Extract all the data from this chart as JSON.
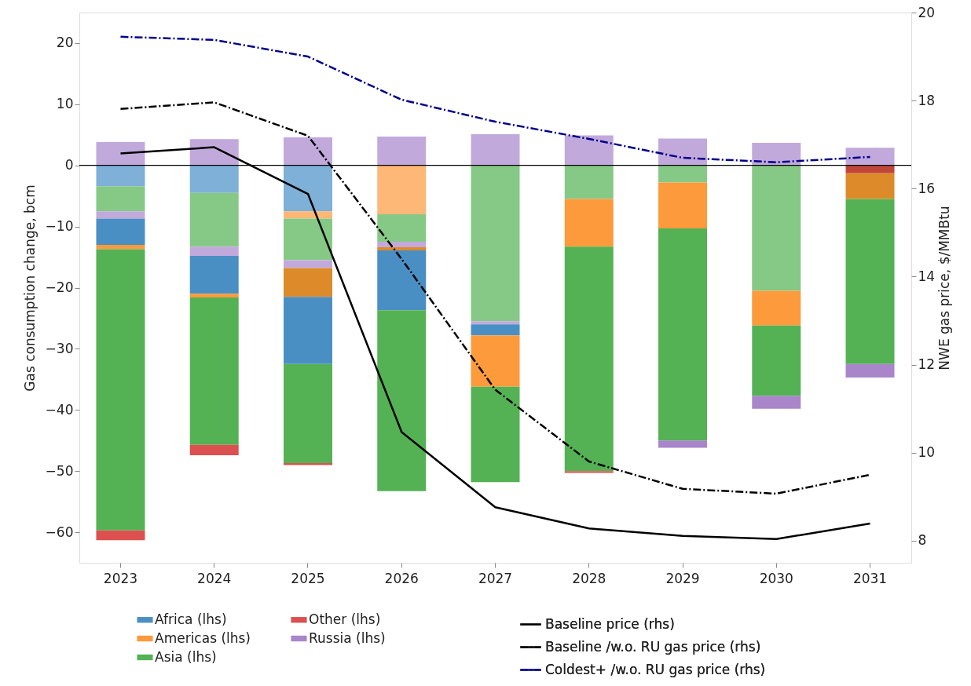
{
  "chart_data": {
    "type": "bar",
    "stacked": true,
    "xlabel": null,
    "ylabel": "Gas consumption change, bcm",
    "y2label": "NWE gas price, $/MMBtu",
    "categories": [
      "2023",
      "2024",
      "2025",
      "2026",
      "2027",
      "2028",
      "2029",
      "2030",
      "2031"
    ],
    "ylim": [
      -65,
      25
    ],
    "yticks": [
      -60,
      -50,
      -40,
      -30,
      -20,
      -10,
      0,
      10,
      20
    ],
    "y2lim": [
      7.5,
      20
    ],
    "y2ticks": [
      8,
      10,
      12,
      14,
      16,
      18,
      20
    ],
    "legend": "bottom",
    "grid": false,
    "ref_lines": [
      {
        "axis": "y",
        "value": 0,
        "color": "#000000"
      }
    ],
    "series": [
      {
        "type": "bar",
        "color": "#c2a9dc",
        "values": [
          3.8,
          4.3,
          4.6,
          4.7,
          5.1,
          4.9,
          4.4,
          3.7,
          2.9
        ]
      },
      {
        "type": "bar",
        "color": "#7eb0d8",
        "values": [
          -3.4,
          -4.5,
          -7.5,
          null,
          null,
          null,
          null,
          null,
          null
        ]
      },
      {
        "type": "bar",
        "color": "#fdb877",
        "values": [
          null,
          null,
          -1.2,
          -8.0,
          null,
          null,
          null,
          null,
          null
        ]
      },
      {
        "type": "bar",
        "color": "#86c986",
        "values": [
          -4.1,
          -8.8,
          -6.8,
          -4.5,
          -25.5,
          -5.5,
          -2.8,
          -20.5,
          null
        ]
      },
      {
        "type": "bar",
        "color": "#c2a9dc",
        "values": [
          -1.2,
          -1.5,
          -1.3,
          -0.9,
          -0.5,
          null,
          null,
          null,
          null
        ]
      },
      {
        "type": "bar",
        "color": "#c0463b",
        "values": [
          null,
          null,
          null,
          null,
          null,
          null,
          null,
          null,
          -1.3
        ]
      },
      {
        "type": "bar",
        "color": "#dd8a2a",
        "values": [
          null,
          null,
          -4.7,
          -0.5,
          null,
          null,
          null,
          null,
          -4.2
        ]
      },
      {
        "type": "bar",
        "name": "Africa (lhs)",
        "color": "#4a8fc4",
        "values": [
          -4.3,
          -6.2,
          -11.0,
          -9.8,
          -1.8,
          null,
          null,
          null,
          null
        ]
      },
      {
        "type": "bar",
        "name": "Americas (lhs)",
        "color": "#fd9a3c",
        "values": [
          -0.7,
          -0.6,
          null,
          null,
          -8.4,
          -7.8,
          -7.5,
          -5.7,
          null
        ]
      },
      {
        "type": "bar",
        "name": "Asia (lhs)",
        "color": "#54b254",
        "values": [
          -46.0,
          -24.1,
          -16.2,
          -29.6,
          -15.6,
          -36.7,
          -34.7,
          -11.5,
          -27.0
        ]
      },
      {
        "type": "bar",
        "name": "Other (lhs)",
        "color": "#dc5050",
        "values": [
          -1.6,
          -1.7,
          -0.3,
          null,
          null,
          -0.3,
          null,
          null,
          null
        ]
      },
      {
        "type": "bar",
        "name": "Russia (lhs)",
        "color": "#a886c9",
        "values": [
          null,
          null,
          null,
          null,
          null,
          null,
          -1.2,
          -2.1,
          -2.2
        ]
      },
      {
        "type": "line",
        "axis": "y2",
        "name": "Baseline price (rhs)",
        "color": "#000000",
        "line_style": "solid",
        "values": [
          16.8,
          16.94,
          15.88,
          10.47,
          8.76,
          8.28,
          8.11,
          8.04,
          8.39
        ]
      },
      {
        "type": "line",
        "axis": "y2",
        "name": "Baseline /w.o. RU gas price (rhs)",
        "color": "#000000",
        "line_style": "dashed",
        "values": [
          17.81,
          17.96,
          17.2,
          14.4,
          11.43,
          9.8,
          9.18,
          9.07,
          9.5
        ]
      },
      {
        "type": "line",
        "axis": "y2",
        "name": "Coldest+ /w.o. RU gas price (rhs)",
        "color": "#00008b",
        "line_style": "dashed",
        "values": [
          19.45,
          19.38,
          19.0,
          18.02,
          17.52,
          17.13,
          16.7,
          16.6,
          16.72
        ]
      }
    ]
  }
}
